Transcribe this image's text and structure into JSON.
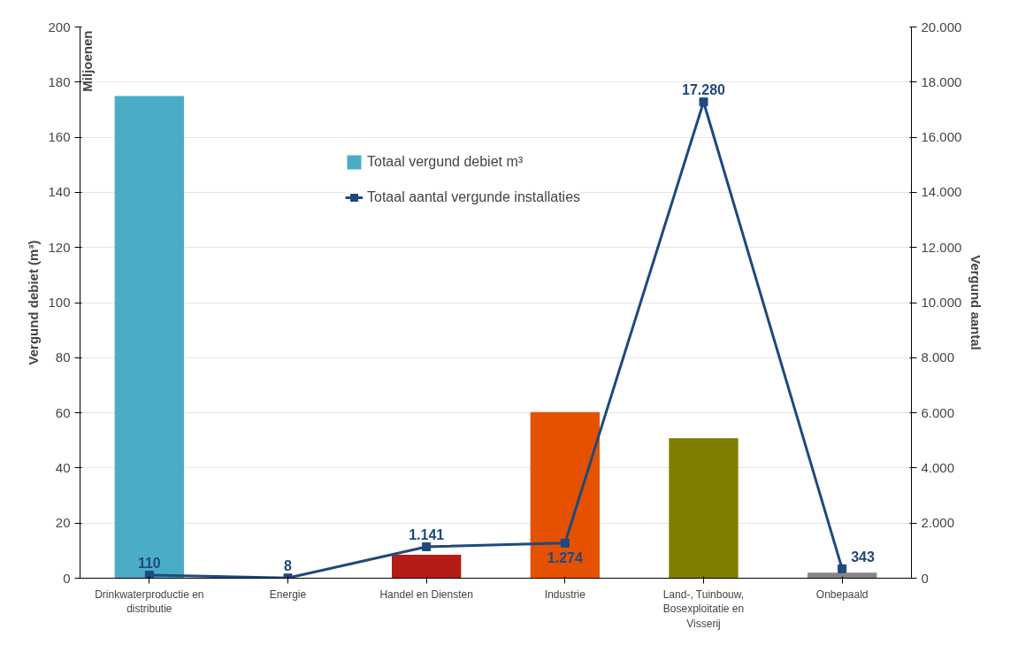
{
  "chart_data": {
    "type": "bar",
    "categories": [
      "Drinkwaterproductie en distributie",
      "Energie",
      "Handel en Diensten",
      "Industrie",
      "Land-, Tuinbouw, Bosexploitatie en Visserij",
      "Onbepaald"
    ],
    "series": [
      {
        "name": "Totaal vergund debiet m³",
        "colors": [
          "#4bacc6",
          "#4bacc6",
          "#b41c18",
          "#e65100",
          "#7f7f00",
          "#868686"
        ],
        "values": [
          175,
          0,
          8.5,
          60.3,
          50.8,
          2
        ]
      },
      {
        "name": "Totaal aantal vergunde installaties",
        "type": "line",
        "axis": "y2",
        "color": "#1f497d",
        "marker": "square",
        "values": [
          110,
          8,
          1141,
          1274,
          17280,
          343
        ],
        "value_labels": [
          "110",
          "8",
          "1.141",
          "1.274",
          "17.280",
          "343"
        ]
      }
    ],
    "ylabel": "Vergund debiet (m³)",
    "y2label": "Vergund aantal",
    "annotations": [
      "Miljoenen"
    ],
    "ylim": [
      0,
      200
    ],
    "yticks": [
      0,
      20,
      40,
      60,
      80,
      100,
      120,
      140,
      160,
      180,
      200
    ],
    "y2lim": [
      0,
      20000
    ],
    "y2ticks": [
      {
        "value": 0,
        "label": "0"
      },
      {
        "value": 2000,
        "label": "2.000"
      },
      {
        "value": 4000,
        "label": "4.000"
      },
      {
        "value": 6000,
        "label": "6.000"
      },
      {
        "value": 8000,
        "label": "8.000"
      },
      {
        "value": 10000,
        "label": "10.000"
      },
      {
        "value": 12000,
        "label": "12.000"
      },
      {
        "value": 14000,
        "label": "14.000"
      },
      {
        "value": 16000,
        "label": "16.000"
      },
      {
        "value": 18000,
        "label": "18.000"
      },
      {
        "value": 20000,
        "label": "20.000"
      }
    ],
    "grid": "y",
    "legend": "top"
  }
}
